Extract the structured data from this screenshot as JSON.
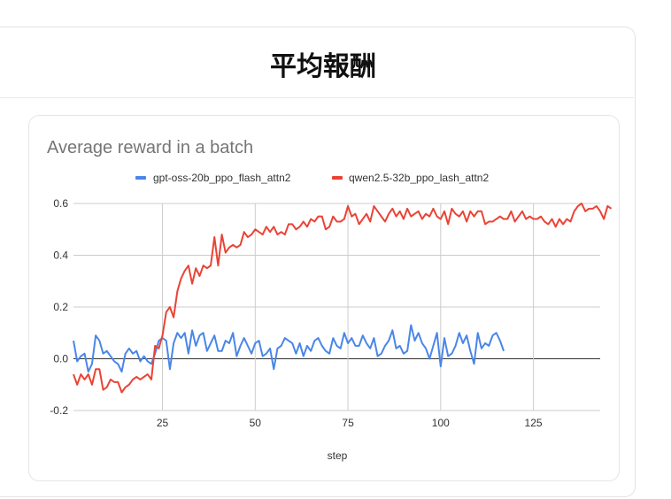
{
  "page": {
    "title": "平均報酬"
  },
  "chart_data": {
    "type": "line",
    "title": "Average reward in a batch",
    "xlabel": "step",
    "ylabel": "",
    "xlim": [
      1,
      143
    ],
    "ylim": [
      -0.2,
      0.6
    ],
    "xticks": [
      25,
      50,
      75,
      100,
      125
    ],
    "xtick_labels": [
      "25",
      "50",
      "75",
      "100",
      "125"
    ],
    "yticks": [
      -0.2,
      0.0,
      0.2,
      0.4,
      0.6
    ],
    "ytick_labels": [
      "-0.2",
      "0.0",
      "0.2",
      "0.4",
      "0.6"
    ],
    "grid": true,
    "legend_position": "top",
    "series": [
      {
        "name": "gpt-oss-20b_ppo_flash_attn2",
        "color": "#4a86e8",
        "x_start": 1,
        "values": [
          0.07,
          -0.01,
          0.01,
          0.02,
          -0.05,
          -0.02,
          0.09,
          0.07,
          0.02,
          0.03,
          0.01,
          -0.01,
          -0.02,
          -0.05,
          0.02,
          0.04,
          0.02,
          0.03,
          -0.01,
          0.01,
          -0.01,
          -0.02,
          0.02,
          0.07,
          0.08,
          0.07,
          -0.04,
          0.06,
          0.1,
          0.08,
          0.1,
          0.02,
          0.11,
          0.05,
          0.09,
          0.1,
          0.03,
          0.06,
          0.09,
          0.03,
          0.03,
          0.07,
          0.06,
          0.1,
          0.01,
          0.05,
          0.08,
          0.05,
          0.02,
          0.06,
          0.07,
          0.01,
          0.02,
          0.04,
          -0.04,
          0.04,
          0.05,
          0.08,
          0.07,
          0.06,
          0.02,
          0.06,
          0.01,
          0.05,
          0.03,
          0.07,
          0.08,
          0.05,
          0.03,
          0.02,
          0.08,
          0.05,
          0.04,
          0.1,
          0.06,
          0.08,
          0.05,
          0.05,
          0.09,
          0.06,
          0.04,
          0.08,
          0.01,
          0.02,
          0.05,
          0.07,
          0.11,
          0.04,
          0.05,
          0.02,
          0.03,
          0.13,
          0.07,
          0.1,
          0.06,
          0.04,
          0.0,
          0.05,
          0.1,
          -0.03,
          0.08,
          0.01,
          0.02,
          0.05,
          0.1,
          0.06,
          0.09,
          0.03,
          -0.02,
          0.1,
          0.04,
          0.06,
          0.05,
          0.09,
          0.1,
          0.07,
          0.03
        ]
      },
      {
        "name": "qwen2.5-32b_ppo_lash_attn2",
        "color": "#ea4335",
        "x_start": 1,
        "values": [
          -0.06,
          -0.1,
          -0.06,
          -0.08,
          -0.06,
          -0.1,
          -0.04,
          -0.04,
          -0.12,
          -0.11,
          -0.08,
          -0.09,
          -0.09,
          -0.13,
          -0.11,
          -0.1,
          -0.08,
          -0.07,
          -0.08,
          -0.07,
          -0.06,
          -0.08,
          0.05,
          0.04,
          0.09,
          0.18,
          0.2,
          0.16,
          0.26,
          0.31,
          0.34,
          0.36,
          0.29,
          0.35,
          0.32,
          0.36,
          0.35,
          0.36,
          0.47,
          0.36,
          0.48,
          0.41,
          0.43,
          0.44,
          0.43,
          0.44,
          0.49,
          0.47,
          0.48,
          0.5,
          0.49,
          0.48,
          0.51,
          0.49,
          0.51,
          0.48,
          0.49,
          0.48,
          0.52,
          0.52,
          0.5,
          0.51,
          0.53,
          0.51,
          0.54,
          0.53,
          0.55,
          0.55,
          0.5,
          0.51,
          0.55,
          0.53,
          0.53,
          0.54,
          0.59,
          0.55,
          0.56,
          0.52,
          0.54,
          0.56,
          0.53,
          0.59,
          0.57,
          0.55,
          0.53,
          0.56,
          0.58,
          0.55,
          0.57,
          0.54,
          0.58,
          0.55,
          0.56,
          0.57,
          0.54,
          0.56,
          0.55,
          0.58,
          0.55,
          0.54,
          0.57,
          0.52,
          0.58,
          0.56,
          0.55,
          0.57,
          0.53,
          0.57,
          0.55,
          0.57,
          0.57,
          0.52,
          0.53,
          0.53,
          0.54,
          0.55,
          0.54,
          0.54,
          0.57,
          0.53,
          0.55,
          0.57,
          0.54,
          0.55,
          0.54,
          0.54,
          0.55,
          0.53,
          0.52,
          0.54,
          0.51,
          0.54,
          0.52,
          0.54,
          0.53,
          0.57,
          0.59,
          0.6,
          0.57,
          0.58,
          0.58,
          0.59,
          0.57,
          0.54,
          0.59,
          0.58
        ]
      }
    ]
  }
}
